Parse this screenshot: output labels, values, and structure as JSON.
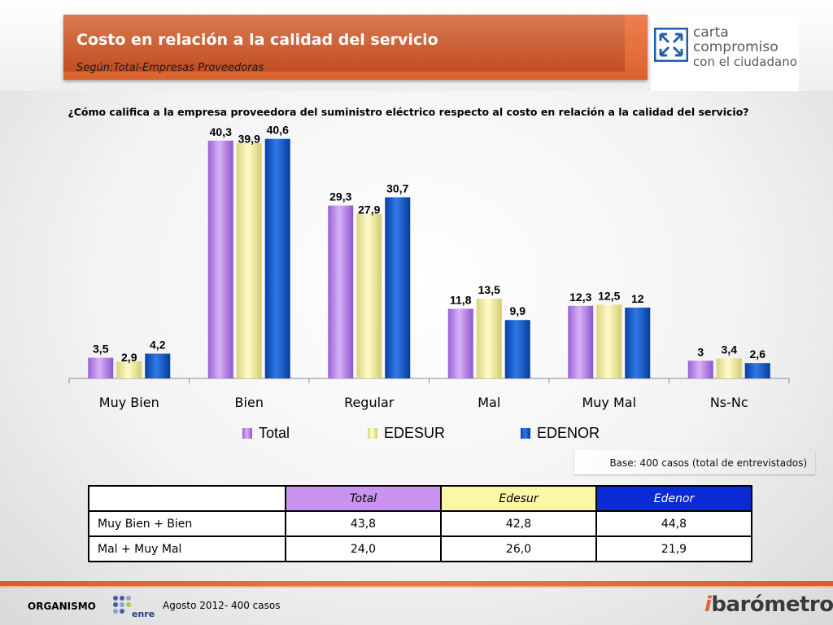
{
  "header": {
    "title": "Costo en relación a la calidad del servicio",
    "subtitle": "Según:Total-Empresas Proveedoras"
  },
  "logo": {
    "line1": "carta",
    "line2": "compromiso",
    "line3": "con el ciudadano"
  },
  "question": "¿Cómo califica a la empresa proveedora del suministro eléctrico respecto al costo en relación a la calidad del servicio?",
  "base_note": "Base: 400  casos (total de entrevistados)",
  "chart_data": {
    "type": "bar",
    "title": "",
    "xlabel": "",
    "ylabel": "",
    "categories": [
      "Muy Bien",
      "Bien",
      "Regular",
      "Mal",
      "Muy Mal",
      "Ns-Nc"
    ],
    "series": [
      {
        "name": "Total",
        "values": [
          3.5,
          40.3,
          29.3,
          11.8,
          12.3,
          3
        ],
        "labels": [
          "3,5",
          "40,3",
          "29,3",
          "11,8",
          "12,3",
          "3"
        ],
        "color": "#b57de8"
      },
      {
        "name": "EDESUR",
        "values": [
          2.9,
          39.9,
          27.9,
          13.5,
          12.5,
          3.4
        ],
        "labels": [
          "2,9",
          "39,9",
          "27,9",
          "13,5",
          "12,5",
          "3,4"
        ],
        "color": "#f2ee98"
      },
      {
        "name": "EDENOR",
        "values": [
          4.2,
          40.6,
          30.7,
          9.9,
          12,
          2.6
        ],
        "labels": [
          "4,2",
          "40,6",
          "30,7",
          "9,9",
          "12",
          "2,6"
        ],
        "color": "#0b4fc0"
      }
    ],
    "ylim": [
      0,
      45
    ],
    "grid": false,
    "legend": "bottom"
  },
  "summary_table": {
    "headers": [
      "",
      "Total",
      "Edesur",
      "Edenor"
    ],
    "rows": [
      {
        "label": "Muy Bien +  Bien",
        "values": [
          "43,8",
          "42,8",
          "44,8"
        ]
      },
      {
        "label": "Mal +  Muy Mal",
        "values": [
          "24,0",
          "26,0",
          "21,9"
        ]
      }
    ]
  },
  "footer": {
    "organismo": "ORGANISMO",
    "enre": "enre",
    "date": "Agosto 2012- 400 casos",
    "brand_prefix": "i",
    "brand": "barómetro"
  }
}
